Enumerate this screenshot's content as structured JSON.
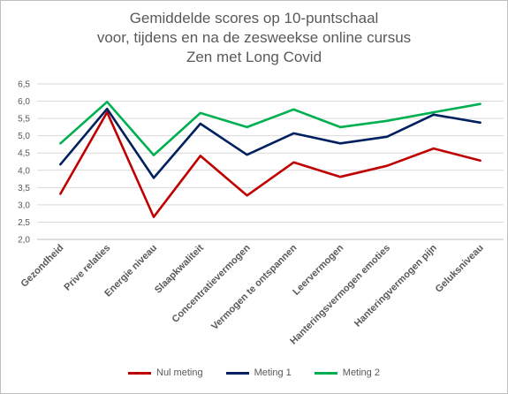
{
  "chart_data": {
    "type": "line",
    "title_lines": [
      "Gemiddelde scores op 10-puntschaal",
      "voor, tijdens en na de zesweekse online cursus",
      "Zen met Long Covid"
    ],
    "categories": [
      "Gezondheid",
      "Prive relaties",
      "Energie niveau",
      "Slaapkwaliteit",
      "Concentratievermogen",
      "Vermogen te ontspannen",
      "Leervermogen",
      "Hanteringsvermogen emoties",
      "Hanteringvermogen pijn",
      "Geluksniveau"
    ],
    "series": [
      {
        "name": "Nul meting",
        "color": "#c00000",
        "values": [
          3.32,
          5.68,
          2.65,
          4.42,
          3.27,
          4.23,
          3.81,
          4.13,
          4.63,
          4.28
        ]
      },
      {
        "name": "Meting 1",
        "color": "#002060",
        "values": [
          4.17,
          5.78,
          3.78,
          5.35,
          4.45,
          5.07,
          4.78,
          4.97,
          5.61,
          5.38
        ]
      },
      {
        "name": "Meting 2",
        "color": "#00b050",
        "values": [
          4.78,
          5.98,
          4.44,
          5.66,
          5.25,
          5.76,
          5.25,
          5.43,
          5.68,
          5.92
        ]
      }
    ],
    "ylim": [
      2.0,
      6.5
    ],
    "yticks": [
      "2,0",
      "2,5",
      "3,0",
      "3,5",
      "4,0",
      "4,5",
      "5,0",
      "5,5",
      "6,0",
      "6,5"
    ],
    "grid": true,
    "legend_position": "bottom"
  }
}
